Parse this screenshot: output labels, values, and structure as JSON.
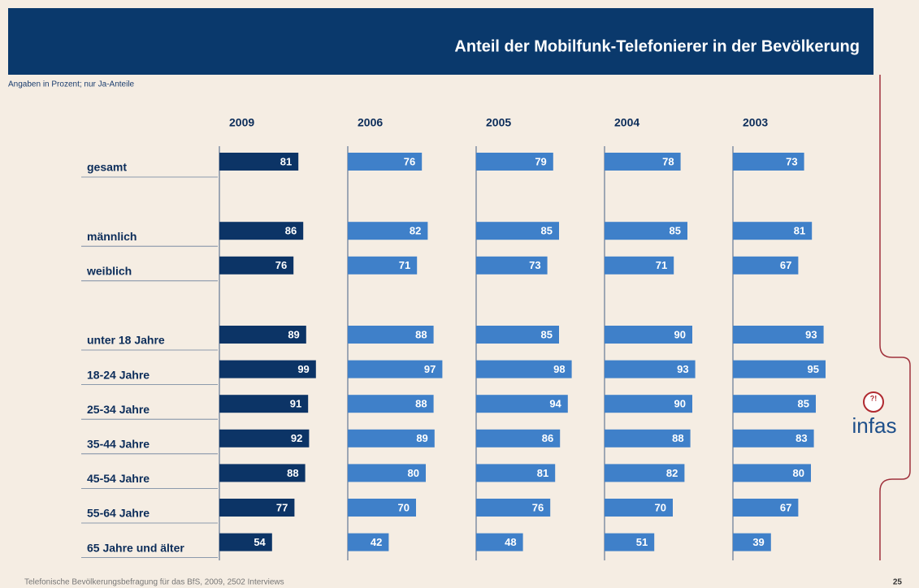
{
  "chart_data": {
    "type": "bar",
    "title": "Anteil der Mobilfunk-Telefonierer in der Bevölkerung",
    "subtitle": "Angaben in Prozent; nur Ja-Anteile",
    "categories": [
      "gesamt",
      "männlich",
      "weiblich",
      "unter 18 Jahre",
      "18-24 Jahre",
      "25-34 Jahre",
      "35-44 Jahre",
      "45-54 Jahre",
      "55-64 Jahre",
      "65 Jahre und älter"
    ],
    "series": [
      {
        "name": "2009",
        "color": "#0c3466",
        "values": [
          81,
          86,
          76,
          89,
          99,
          91,
          92,
          88,
          77,
          54
        ]
      },
      {
        "name": "2006",
        "color": "#3f80c9",
        "values": [
          76,
          82,
          71,
          88,
          97,
          88,
          89,
          80,
          70,
          42
        ]
      },
      {
        "name": "2005",
        "color": "#3f80c9",
        "values": [
          79,
          85,
          73,
          85,
          98,
          94,
          86,
          81,
          76,
          48
        ]
      },
      {
        "name": "2004",
        "color": "#3f80c9",
        "values": [
          78,
          85,
          71,
          90,
          93,
          90,
          88,
          82,
          70,
          51
        ]
      },
      {
        "name": "2003",
        "color": "#3f80c9",
        "values": [
          73,
          81,
          67,
          93,
          95,
          85,
          83,
          80,
          67,
          39
        ]
      }
    ],
    "xlim": [
      0,
      100
    ],
    "source": "Telefonische Bevölkerungsbefragung für das BfS, 2009, 2502 Interviews",
    "page_number": "25",
    "logo": {
      "icon": "?!",
      "text": "infas"
    }
  }
}
